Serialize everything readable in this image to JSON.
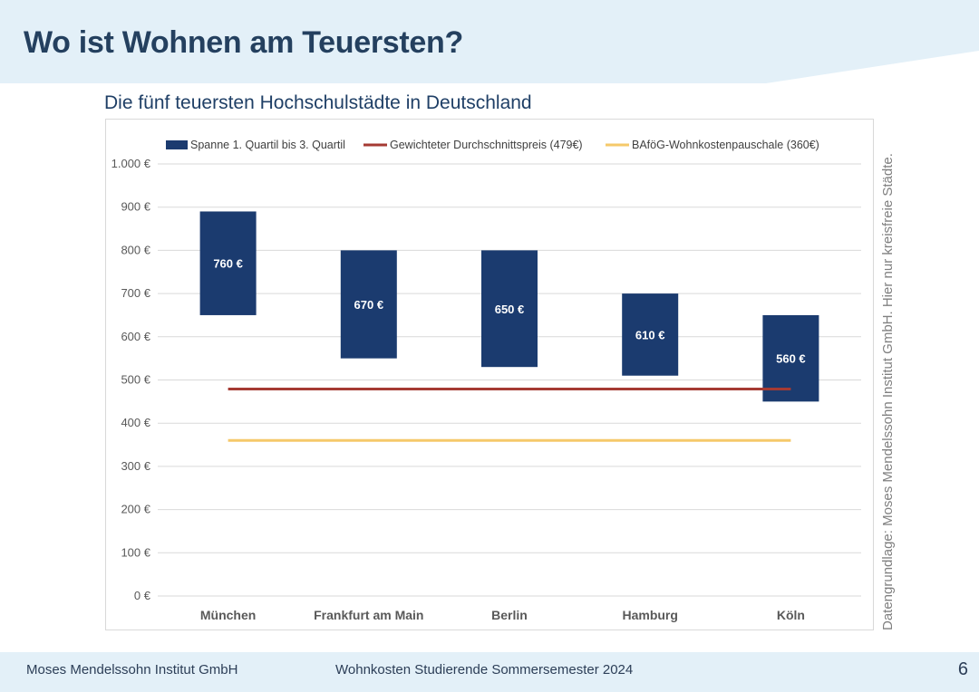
{
  "page": {
    "title": "Wo ist Wohnen am Teuersten?",
    "side_note": "Datengrundlage: Moses Mendelssohn Institut GmbH. Hier nur kreisfreie Städte.",
    "footer_org": "Moses Mendelssohn Institut GmbH",
    "footer_report": "Wohnkosten Studierende Sommersemester 2024",
    "page_number": "6"
  },
  "colors": {
    "bar": "#1b3b6f",
    "avg_line": "#a53a33",
    "bafog_line": "#f5c96a",
    "header_band": "#e3f0f8",
    "title": "#24405f"
  },
  "chart_data": {
    "type": "bar",
    "title": "Die fünf teuersten Hochschulstädte in Deutschland",
    "categories": [
      "München",
      "Frankfurt am Main",
      "Berlin",
      "Hamburg",
      "Köln"
    ],
    "series": [
      {
        "name": "Spanne 1. Quartil bis 3. Quartil",
        "kind": "floating-range",
        "low": [
          650,
          550,
          530,
          510,
          450
        ],
        "high": [
          890,
          800,
          800,
          700,
          650
        ],
        "labels": [
          "760 €",
          "670 €",
          "650 €",
          "610 €",
          "560 €"
        ]
      },
      {
        "name": "Gewichteter Durchschnittspreis (479€)",
        "kind": "line",
        "value": 479
      },
      {
        "name": "BAföG-Wohnkostenpauschale (360€)",
        "kind": "line",
        "value": 360
      }
    ],
    "ylim": [
      0,
      1000
    ],
    "yticks": [
      0,
      100,
      200,
      300,
      400,
      500,
      600,
      700,
      800,
      900,
      1000
    ],
    "ytick_labels": [
      "0 €",
      "100 €",
      "200 €",
      "300 €",
      "400 €",
      "500 €",
      "600 €",
      "700 €",
      "800 €",
      "900 €",
      "1.000 €"
    ],
    "grid": true,
    "legend": "top"
  }
}
